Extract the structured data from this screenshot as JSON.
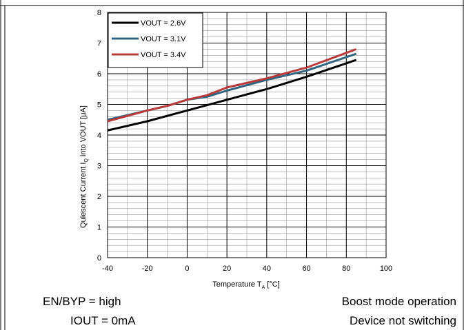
{
  "chart_data": {
    "type": "line",
    "title": "",
    "ylabel_main": "Quiescent Current I",
    "ylabel_sub": "Q",
    "ylabel_rest": " into VOUT  [μA]",
    "xlabel_main": "Temperature T",
    "xlabel_sub": "A",
    "xlabel_rest": " [°C]",
    "xlim": [
      -40,
      100
    ],
    "ylim": [
      0,
      8
    ],
    "x_ticks": [
      -40,
      -20,
      0,
      20,
      40,
      60,
      80,
      100
    ],
    "y_ticks": [
      0,
      1,
      2,
      3,
      4,
      5,
      6,
      7,
      8
    ],
    "grid": true,
    "legend_position": "top-left",
    "series": [
      {
        "name": "VOUT = 2.6V",
        "color": "#000000",
        "x": [
          -40,
          -20,
          0,
          20,
          40,
          60,
          85
        ],
        "y": [
          4.15,
          4.45,
          4.8,
          5.15,
          5.5,
          5.9,
          6.45
        ]
      },
      {
        "name": "VOUT = 3.1V",
        "color": "#31657f",
        "x": [
          -40,
          -20,
          -10,
          0,
          10,
          20,
          40,
          60,
          85
        ],
        "y": [
          4.5,
          4.8,
          4.95,
          5.15,
          5.25,
          5.45,
          5.8,
          6.1,
          6.65
        ]
      },
      {
        "name": "VOUT = 3.4V",
        "color": "#b83b3b",
        "x": [
          -40,
          -20,
          -10,
          0,
          10,
          20,
          40,
          60,
          85
        ],
        "y": [
          4.45,
          4.8,
          4.95,
          5.15,
          5.3,
          5.55,
          5.85,
          6.2,
          6.8
        ]
      }
    ]
  },
  "conditions": {
    "en_byp": "EN/BYP = high",
    "iout": "IOUT = 0mA",
    "mode": "Boost mode operation",
    "switching": "Device not switching"
  }
}
